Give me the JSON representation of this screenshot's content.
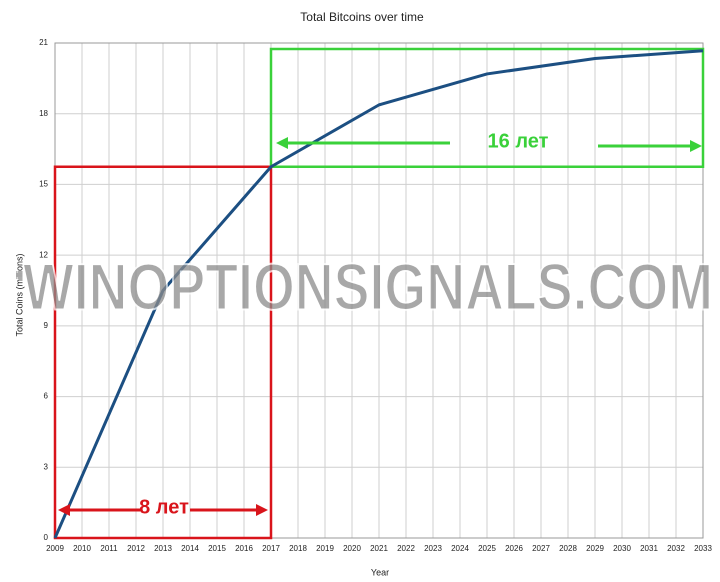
{
  "chart_data": {
    "type": "line",
    "title": "Total Bitcoins over time",
    "x_label": "Year",
    "y_label": "Total Coins (millions)",
    "x": [
      2009,
      2013,
      2017,
      2021,
      2025,
      2029,
      2033
    ],
    "series": [
      {
        "name": "Total Coins",
        "color": "#1c4f82",
        "values": [
          0,
          10.5,
          15.75,
          18.375,
          19.6875,
          20.34375,
          20.671875
        ]
      }
    ],
    "xlim": [
      2009,
      2033
    ],
    "xticks": [
      2009,
      2010,
      2011,
      2012,
      2013,
      2014,
      2015,
      2016,
      2017,
      2018,
      2019,
      2020,
      2021,
      2022,
      2023,
      2024,
      2025,
      2026,
      2027,
      2028,
      2029,
      2030,
      2031,
      2032,
      2033
    ],
    "ylim": [
      0,
      21
    ],
    "yticks": [
      0,
      3,
      6,
      9,
      12,
      15,
      18,
      21
    ],
    "grid": true,
    "annotations": [
      "8 лет",
      "16 лет"
    ],
    "watermark": "WINOPTIONSIGNALS.COM"
  }
}
